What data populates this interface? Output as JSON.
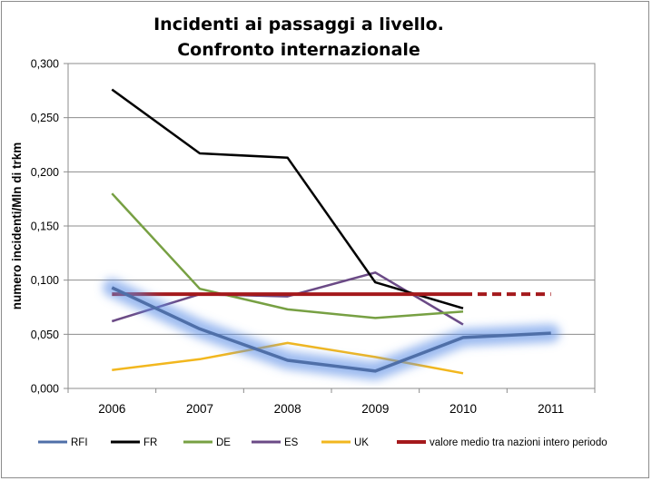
{
  "chart_data": {
    "type": "line",
    "title": [
      "Incidenti ai passaggi a livello.",
      "Confronto internazionale"
    ],
    "ylabel": "numero incidenti/Mln di trkm",
    "xlabel": "",
    "categories": [
      "2006",
      "2007",
      "2008",
      "2009",
      "2010",
      "2011"
    ],
    "ylim": [
      0,
      0.3
    ],
    "y_ticks": [
      0,
      0.05,
      0.1,
      0.15,
      0.2,
      0.25,
      0.3
    ],
    "y_tick_labels": [
      "0,000",
      "0,050",
      "0,100",
      "0,150",
      "0,200",
      "0,250",
      "0,300"
    ],
    "grid": true,
    "legend_position": "bottom",
    "series": [
      {
        "name": "RFI",
        "color": "#4f6fa8",
        "highlight": true,
        "values": [
          0.093,
          0.055,
          0.026,
          0.016,
          0.047,
          0.051
        ]
      },
      {
        "name": "FR",
        "color": "#000000",
        "values": [
          0.276,
          0.217,
          0.213,
          0.098,
          0.074,
          null
        ]
      },
      {
        "name": "DE",
        "color": "#77a043",
        "values": [
          0.18,
          0.092,
          0.073,
          0.065,
          0.071,
          null
        ]
      },
      {
        "name": "ES",
        "color": "#6b4a86",
        "values": [
          0.062,
          0.087,
          0.085,
          0.107,
          0.059,
          null
        ]
      },
      {
        "name": "UK",
        "color": "#f2b71e",
        "values": [
          0.017,
          0.027,
          0.042,
          0.029,
          0.014,
          null
        ]
      },
      {
        "name": "valore medio tra nazioni intero periodo",
        "color": "#a4191c",
        "constant": 0.087,
        "solid_until": "2010",
        "dashed_until": "2011"
      }
    ]
  }
}
